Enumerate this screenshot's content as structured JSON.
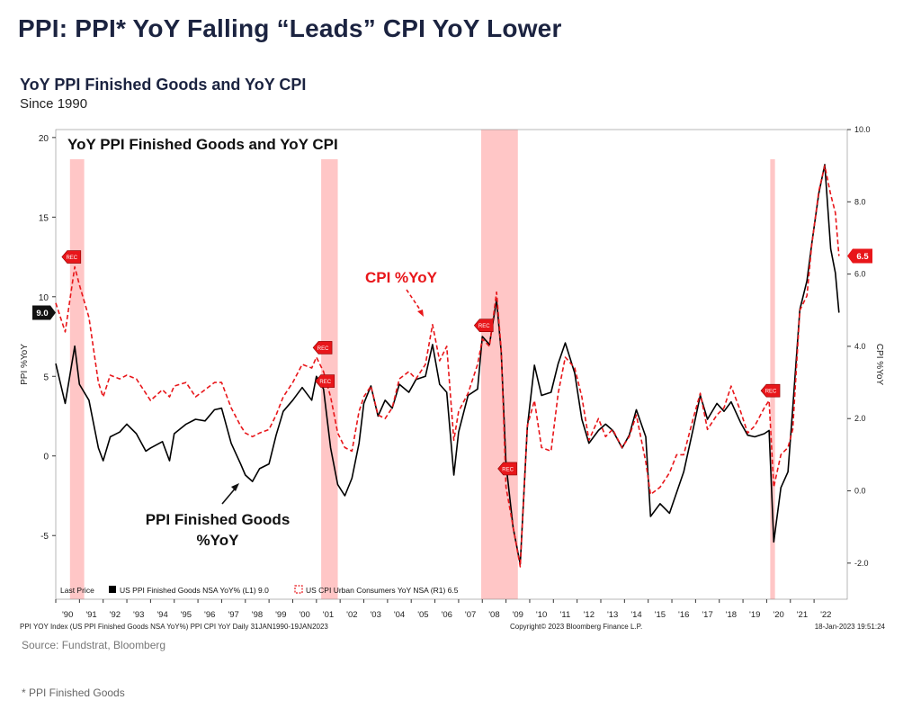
{
  "title": "PPI: PPI* YoY Falling “Leads” CPI YoY Lower",
  "chart_heading": "YoY PPI Finished Goods and YoY CPI",
  "chart_subheading": "Since 1990",
  "source": "Source: Fundstrat, Bloomberg",
  "footnote": "* PPI Finished Goods",
  "colors": {
    "ppi": "#000000",
    "cpi": "#e8161a",
    "recession": "#ffb3b3",
    "title": "#1b2340"
  },
  "chart_data": {
    "type": "line",
    "title": "YoY PPI Finished Goods and YoY CPI",
    "ylabel_left": "PPI %YoY",
    "ylabel_right": "CPI %YoY",
    "ylim_left": [
      -9,
      20.5
    ],
    "ylim_right": [
      -3.0,
      10.0
    ],
    "yticks_left": [
      -5,
      0,
      5,
      10,
      15,
      20
    ],
    "yticks_right": [
      "-2.0",
      "0.0",
      "2.0",
      "4.0",
      "6.0",
      "8.0",
      "10.0"
    ],
    "xticks": [
      "'90",
      "'91",
      "'92",
      "'93",
      "'94",
      "'95",
      "'96",
      "'97",
      "'98",
      "'99",
      "'00",
      "'01",
      "'02",
      "'03",
      "'04",
      "'05",
      "'06",
      "'07",
      "'08",
      "'09",
      "'10",
      "'11",
      "'12",
      "'13",
      "'14",
      "'15",
      "'16",
      "'17",
      "'18",
      "'19",
      "'20",
      "'21",
      "'22"
    ],
    "recessions": [
      [
        1990.6,
        1991.2
      ],
      [
        2001.2,
        2001.9
      ],
      [
        2007.95,
        2009.5
      ],
      [
        2020.15,
        2020.35
      ]
    ],
    "rec_markers": [
      {
        "axis": "left",
        "x": 1990.6,
        "y": 12.5
      },
      {
        "axis": "left",
        "x": 2001.2,
        "y": 6.8
      },
      {
        "axis": "left",
        "x": 2001.3,
        "y": 4.7
      },
      {
        "axis": "left",
        "x": 2008.0,
        "y": 8.2
      },
      {
        "axis": "left",
        "x": 2009.0,
        "y": -0.8
      },
      {
        "axis": "left",
        "x": 2020.1,
        "y": 4.1
      }
    ],
    "last_values": {
      "ppi": "9.0",
      "cpi": "6.5"
    },
    "series": [
      {
        "name": "US PPI Finished Goods NSA YoY%",
        "axis": "left",
        "style": "solid",
        "points": [
          [
            1990.0,
            5.8
          ],
          [
            1990.4,
            3.3
          ],
          [
            1990.8,
            6.9
          ],
          [
            1991.0,
            4.5
          ],
          [
            1991.4,
            3.5
          ],
          [
            1991.8,
            0.5
          ],
          [
            1992.0,
            -0.3
          ],
          [
            1992.3,
            1.2
          ],
          [
            1992.7,
            1.5
          ],
          [
            1993.0,
            2.0
          ],
          [
            1993.4,
            1.4
          ],
          [
            1993.8,
            0.3
          ],
          [
            1994.0,
            0.5
          ],
          [
            1994.5,
            0.9
          ],
          [
            1994.8,
            -0.3
          ],
          [
            1995.0,
            1.4
          ],
          [
            1995.5,
            2.0
          ],
          [
            1995.9,
            2.3
          ],
          [
            1996.3,
            2.2
          ],
          [
            1996.7,
            2.9
          ],
          [
            1997.0,
            3.0
          ],
          [
            1997.4,
            0.8
          ],
          [
            1997.8,
            -0.5
          ],
          [
            1998.0,
            -1.2
          ],
          [
            1998.3,
            -1.6
          ],
          [
            1998.6,
            -0.8
          ],
          [
            1999.0,
            -0.5
          ],
          [
            1999.3,
            1.3
          ],
          [
            1999.6,
            2.8
          ],
          [
            2000.0,
            3.5
          ],
          [
            2000.4,
            4.3
          ],
          [
            2000.8,
            3.5
          ],
          [
            2001.0,
            5.0
          ],
          [
            2001.3,
            4.2
          ],
          [
            2001.6,
            0.5
          ],
          [
            2001.9,
            -1.8
          ],
          [
            2002.2,
            -2.5
          ],
          [
            2002.5,
            -1.4
          ],
          [
            2002.8,
            0.8
          ],
          [
            2003.0,
            3.3
          ],
          [
            2003.3,
            4.4
          ],
          [
            2003.6,
            2.5
          ],
          [
            2003.9,
            3.5
          ],
          [
            2004.2,
            3.0
          ],
          [
            2004.5,
            4.5
          ],
          [
            2004.9,
            4.0
          ],
          [
            2005.2,
            4.8
          ],
          [
            2005.6,
            5.0
          ],
          [
            2005.9,
            7.0
          ],
          [
            2006.2,
            4.5
          ],
          [
            2006.5,
            4.0
          ],
          [
            2006.8,
            -1.2
          ],
          [
            2007.0,
            1.5
          ],
          [
            2007.4,
            3.8
          ],
          [
            2007.8,
            4.2
          ],
          [
            2008.0,
            7.5
          ],
          [
            2008.3,
            7.0
          ],
          [
            2008.6,
            9.8
          ],
          [
            2008.8,
            6.5
          ],
          [
            2009.0,
            -0.5
          ],
          [
            2009.3,
            -4.5
          ],
          [
            2009.6,
            -6.8
          ],
          [
            2009.9,
            1.8
          ],
          [
            2010.2,
            5.7
          ],
          [
            2010.5,
            3.8
          ],
          [
            2010.9,
            4.0
          ],
          [
            2011.2,
            5.8
          ],
          [
            2011.5,
            7.1
          ],
          [
            2011.9,
            5.2
          ],
          [
            2012.2,
            2.3
          ],
          [
            2012.5,
            0.8
          ],
          [
            2012.9,
            1.6
          ],
          [
            2013.2,
            2.0
          ],
          [
            2013.5,
            1.6
          ],
          [
            2013.9,
            0.5
          ],
          [
            2014.2,
            1.3
          ],
          [
            2014.5,
            2.9
          ],
          [
            2014.9,
            1.2
          ],
          [
            2015.1,
            -3.8
          ],
          [
            2015.5,
            -3.0
          ],
          [
            2015.9,
            -3.6
          ],
          [
            2016.2,
            -2.3
          ],
          [
            2016.5,
            -1.0
          ],
          [
            2016.9,
            1.7
          ],
          [
            2017.2,
            3.8
          ],
          [
            2017.5,
            2.3
          ],
          [
            2017.9,
            3.3
          ],
          [
            2018.2,
            2.8
          ],
          [
            2018.5,
            3.4
          ],
          [
            2018.9,
            2.1
          ],
          [
            2019.2,
            1.3
          ],
          [
            2019.5,
            1.2
          ],
          [
            2019.9,
            1.4
          ],
          [
            2020.1,
            1.6
          ],
          [
            2020.3,
            -5.4
          ],
          [
            2020.6,
            -2.0
          ],
          [
            2020.9,
            -1.0
          ],
          [
            2021.1,
            3.0
          ],
          [
            2021.4,
            9.2
          ],
          [
            2021.7,
            11.0
          ],
          [
            2021.9,
            13.3
          ],
          [
            2022.2,
            16.5
          ],
          [
            2022.45,
            18.3
          ],
          [
            2022.7,
            13.0
          ],
          [
            2022.9,
            11.5
          ],
          [
            2023.05,
            9.0
          ]
        ]
      },
      {
        "name": "US CPI Urban Consumers YoY NSA",
        "axis": "right",
        "style": "dashed",
        "points": [
          [
            1990.0,
            5.2
          ],
          [
            1990.4,
            4.4
          ],
          [
            1990.8,
            6.2
          ],
          [
            1991.0,
            5.7
          ],
          [
            1991.4,
            4.8
          ],
          [
            1991.8,
            3.0
          ],
          [
            1992.0,
            2.6
          ],
          [
            1992.3,
            3.2
          ],
          [
            1992.7,
            3.1
          ],
          [
            1993.0,
            3.2
          ],
          [
            1993.4,
            3.1
          ],
          [
            1993.8,
            2.7
          ],
          [
            1994.0,
            2.5
          ],
          [
            1994.5,
            2.8
          ],
          [
            1994.8,
            2.6
          ],
          [
            1995.0,
            2.9
          ],
          [
            1995.5,
            3.0
          ],
          [
            1995.9,
            2.6
          ],
          [
            1996.3,
            2.8
          ],
          [
            1996.7,
            3.0
          ],
          [
            1997.0,
            3.0
          ],
          [
            1997.4,
            2.3
          ],
          [
            1997.8,
            1.8
          ],
          [
            1998.0,
            1.6
          ],
          [
            1998.3,
            1.5
          ],
          [
            1998.6,
            1.6
          ],
          [
            1999.0,
            1.7
          ],
          [
            1999.3,
            2.1
          ],
          [
            1999.6,
            2.6
          ],
          [
            2000.0,
            3.0
          ],
          [
            2000.4,
            3.5
          ],
          [
            2000.8,
            3.4
          ],
          [
            2001.0,
            3.7
          ],
          [
            2001.3,
            3.3
          ],
          [
            2001.6,
            2.6
          ],
          [
            2001.9,
            1.6
          ],
          [
            2002.2,
            1.2
          ],
          [
            2002.5,
            1.1
          ],
          [
            2002.8,
            2.2
          ],
          [
            2003.0,
            2.6
          ],
          [
            2003.3,
            2.9
          ],
          [
            2003.6,
            2.1
          ],
          [
            2003.9,
            2.0
          ],
          [
            2004.2,
            2.3
          ],
          [
            2004.5,
            3.1
          ],
          [
            2004.9,
            3.3
          ],
          [
            2005.2,
            3.1
          ],
          [
            2005.6,
            3.5
          ],
          [
            2005.9,
            4.6
          ],
          [
            2006.2,
            3.6
          ],
          [
            2006.5,
            4.0
          ],
          [
            2006.8,
            1.4
          ],
          [
            2007.0,
            2.2
          ],
          [
            2007.4,
            2.7
          ],
          [
            2007.8,
            3.5
          ],
          [
            2008.0,
            4.2
          ],
          [
            2008.3,
            4.0
          ],
          [
            2008.6,
            5.5
          ],
          [
            2008.8,
            3.9
          ],
          [
            2009.0,
            0.1
          ],
          [
            2009.3,
            -1.0
          ],
          [
            2009.6,
            -2.1
          ],
          [
            2009.9,
            1.8
          ],
          [
            2010.2,
            2.5
          ],
          [
            2010.5,
            1.2
          ],
          [
            2010.9,
            1.1
          ],
          [
            2011.2,
            2.7
          ],
          [
            2011.5,
            3.7
          ],
          [
            2011.9,
            3.4
          ],
          [
            2012.2,
            2.6
          ],
          [
            2012.5,
            1.4
          ],
          [
            2012.9,
            2.0
          ],
          [
            2013.2,
            1.5
          ],
          [
            2013.5,
            1.7
          ],
          [
            2013.9,
            1.2
          ],
          [
            2014.2,
            1.5
          ],
          [
            2014.5,
            2.1
          ],
          [
            2014.9,
            0.8
          ],
          [
            2015.1,
            -0.1
          ],
          [
            2015.5,
            0.1
          ],
          [
            2015.9,
            0.5
          ],
          [
            2016.2,
            1.0
          ],
          [
            2016.5,
            1.0
          ],
          [
            2016.9,
            2.0
          ],
          [
            2017.2,
            2.7
          ],
          [
            2017.5,
            1.7
          ],
          [
            2017.9,
            2.1
          ],
          [
            2018.2,
            2.3
          ],
          [
            2018.5,
            2.9
          ],
          [
            2018.9,
            2.2
          ],
          [
            2019.2,
            1.6
          ],
          [
            2019.5,
            1.8
          ],
          [
            2019.9,
            2.3
          ],
          [
            2020.1,
            2.5
          ],
          [
            2020.3,
            0.1
          ],
          [
            2020.6,
            1.0
          ],
          [
            2020.9,
            1.2
          ],
          [
            2021.1,
            1.7
          ],
          [
            2021.4,
            5.0
          ],
          [
            2021.7,
            5.4
          ],
          [
            2021.9,
            6.8
          ],
          [
            2022.2,
            8.3
          ],
          [
            2022.45,
            9.0
          ],
          [
            2022.7,
            8.2
          ],
          [
            2022.9,
            7.7
          ],
          [
            2023.05,
            6.5
          ]
        ]
      }
    ],
    "annotations": [
      {
        "text_lines": [
          "CPI %YoY"
        ],
        "color": "#e8161a"
      },
      {
        "text_lines": [
          "PPI Finished Goods",
          "%YoY"
        ],
        "color": "#111111"
      }
    ],
    "legend_items": [
      {
        "label": "Last Price"
      },
      {
        "label": "US PPI Finished Goods NSA YoY%  (L1) 9.0",
        "color": "#000000",
        "style": "solid"
      },
      {
        "label": "US CPI Urban Consumers YoY NSA  (R1) 6.5",
        "color": "#e8161a",
        "style": "dashed"
      }
    ],
    "footer_left": "PPI YOY Index (US PPI Finished Goods NSA YoY%) PPI CPI YoY  Daily 31JAN1990-19JAN2023",
    "footer_center": "Copyright© 2023 Bloomberg Finance L.P.",
    "footer_right": "18-Jan-2023  19:51:24",
    "rec_label": "REC",
    "legend_position": "bottom-left"
  }
}
